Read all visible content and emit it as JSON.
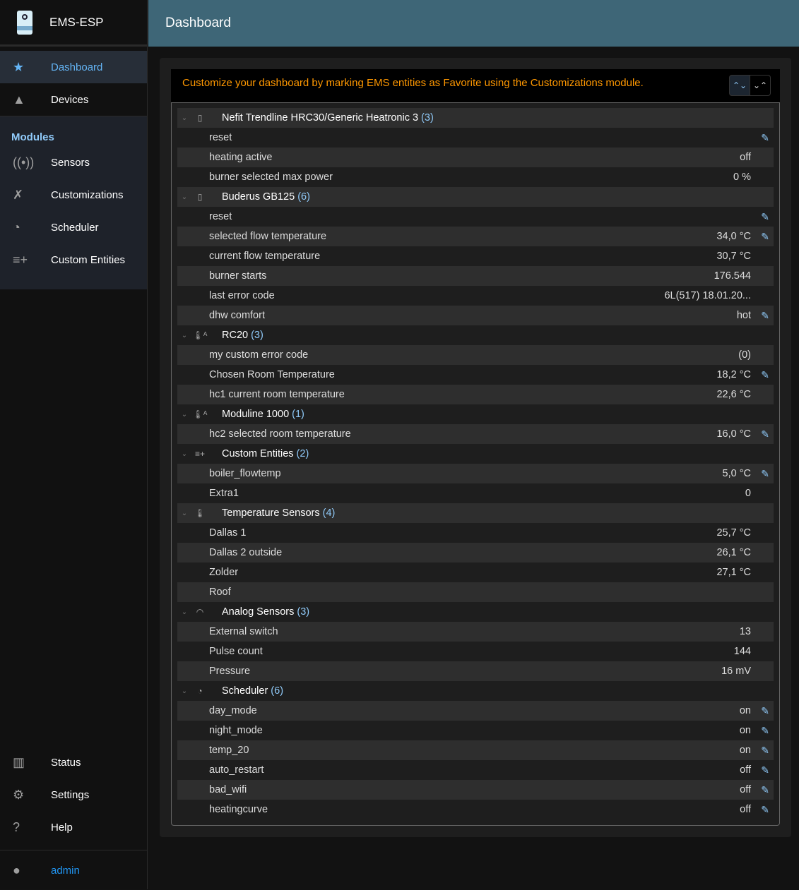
{
  "app": {
    "title": "EMS-ESP"
  },
  "header": {
    "title": "Dashboard"
  },
  "sidebar": {
    "main": [
      {
        "label": "Dashboard",
        "icon": "star-icon",
        "glyph": "★"
      },
      {
        "label": "Devices",
        "icon": "category-icon",
        "glyph": "▲"
      }
    ],
    "modules_title": "Modules",
    "modules": [
      {
        "label": "Sensors",
        "icon": "sensors-icon",
        "glyph": "((•))"
      },
      {
        "label": "Customizations",
        "icon": "build-icon",
        "glyph": "✗"
      },
      {
        "label": "Scheduler",
        "icon": "more-time-icon",
        "glyph": "◔"
      },
      {
        "label": "Custom Entities",
        "icon": "playlist-add-icon",
        "glyph": "≡+"
      }
    ],
    "bottom": [
      {
        "label": "Status",
        "icon": "assessment-icon",
        "glyph": "▥"
      },
      {
        "label": "Settings",
        "icon": "settings-icon",
        "glyph": "⚙"
      },
      {
        "label": "Help",
        "icon": "help-icon",
        "glyph": "?"
      }
    ],
    "user": {
      "label": "admin",
      "icon": "account-circle-icon",
      "glyph": "●"
    }
  },
  "colors": {
    "accent": "#90caf9",
    "warning": "#ff9800",
    "header": "#3e6677"
  },
  "alert": "Customize your dashboard by marking EMS entities as Favorite using the Customizations module.",
  "groups": [
    {
      "name": "Nefit Trendline HRC30/Generic Heatronic 3",
      "count": "(3)",
      "icon": "boiler-icon",
      "glyph": "▯",
      "rows": [
        {
          "name": "reset",
          "value": "",
          "edit": true
        },
        {
          "name": "heating active",
          "value": "off"
        },
        {
          "name": "burner selected max power",
          "value": "0 %"
        }
      ]
    },
    {
      "name": "Buderus GB125",
      "count": "(6)",
      "icon": "boiler-icon",
      "glyph": "▯",
      "rows": [
        {
          "name": "reset",
          "value": "",
          "edit": true
        },
        {
          "name": "selected flow temperature",
          "value": "34,0 °C",
          "edit": true
        },
        {
          "name": "current flow temperature",
          "value": "30,7 °C"
        },
        {
          "name": "burner starts",
          "value": "176.544"
        },
        {
          "name": "last error code",
          "value": "6L(517) 18.01.20..."
        },
        {
          "name": "dhw comfort",
          "value": "hot",
          "edit": true
        }
      ]
    },
    {
      "name": "RC20",
      "count": "(3)",
      "icon": "thermostat-auto-icon",
      "glyph": "🌡ᴬ",
      "rows": [
        {
          "name": "my custom error code",
          "value": "(0)"
        },
        {
          "name": "Chosen Room Temperature",
          "value": "18,2 °C",
          "edit": true
        },
        {
          "name": "hc1 current room temperature",
          "value": "22,6 °C"
        }
      ]
    },
    {
      "name": "Moduline 1000",
      "count": "(1)",
      "icon": "thermostat-auto-icon",
      "glyph": "🌡ᴬ",
      "rows": [
        {
          "name": "hc2 selected room temperature",
          "value": "16,0 °C",
          "edit": true
        }
      ]
    },
    {
      "name": "Custom Entities",
      "count": "(2)",
      "icon": "playlist-add-icon",
      "glyph": "≡+",
      "rows": [
        {
          "name": "boiler_flowtemp",
          "value": "5,0 °C",
          "edit": true
        },
        {
          "name": "Extra1",
          "value": "0"
        }
      ]
    },
    {
      "name": "Temperature Sensors",
      "count": "(4)",
      "icon": "thermometer-icon",
      "glyph": "🌡",
      "rows": [
        {
          "name": "Dallas 1",
          "value": "25,7 °C"
        },
        {
          "name": "Dallas 2 outside",
          "value": "26,1 °C"
        },
        {
          "name": "Zolder",
          "value": "27,1 °C"
        },
        {
          "name": "Roof",
          "value": ""
        }
      ]
    },
    {
      "name": "Analog Sensors",
      "count": "(3)",
      "icon": "gauge-icon",
      "glyph": "◠",
      "rows": [
        {
          "name": "External switch",
          "value": "13"
        },
        {
          "name": "Pulse count",
          "value": "144"
        },
        {
          "name": "Pressure",
          "value": "16 mV"
        }
      ]
    },
    {
      "name": "Scheduler",
      "count": "(6)",
      "icon": "more-time-icon",
      "glyph": "◔",
      "rows": [
        {
          "name": "day_mode",
          "value": "on",
          "edit": true
        },
        {
          "name": "night_mode",
          "value": "on",
          "edit": true
        },
        {
          "name": "temp_20",
          "value": "on",
          "edit": true
        },
        {
          "name": "auto_restart",
          "value": "off",
          "edit": true
        },
        {
          "name": "bad_wifi",
          "value": "off",
          "edit": true
        },
        {
          "name": "heatingcurve",
          "value": "off",
          "edit": true
        }
      ]
    }
  ]
}
